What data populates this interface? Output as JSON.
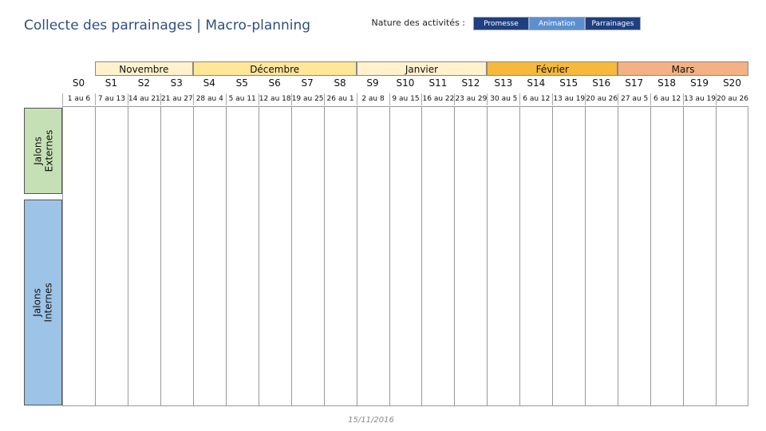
{
  "header": {
    "title": "Collecte des parrainages | Macro-planning"
  },
  "legend": {
    "label": "Nature des activités :",
    "items": [
      "Promesse",
      "Animation",
      "Parrainages"
    ]
  },
  "months": [
    "Novembre",
    "Décembre",
    "Janvier",
    "Février",
    "Mars"
  ],
  "weeks": [
    "S0",
    "S1",
    "S2",
    "S3",
    "S4",
    "S5",
    "S6",
    "S7",
    "S8",
    "S9",
    "S10",
    "S11",
    "S12",
    "S13",
    "S14",
    "S15",
    "S16",
    "S17",
    "S18",
    "S19",
    "S20"
  ],
  "dates": [
    "1 au 6",
    "7 au 13",
    "14 au 21",
    "21 au 27",
    "28 au 4",
    "5 au 11",
    "12 au 18",
    "19 au 25",
    "26 au 1",
    "2 au 8",
    "9 au 15",
    "16 au 22",
    "23 au 29",
    "30 au 5",
    "6 au 12",
    "13 au 19",
    "20 au 26",
    "27 au 5",
    "6 au 12",
    "13 au 19",
    "20 au 26"
  ],
  "side_labels": [
    "Jalons Externes",
    "Jalons Internes"
  ],
  "footer": {
    "date": "15/11/2016"
  }
}
